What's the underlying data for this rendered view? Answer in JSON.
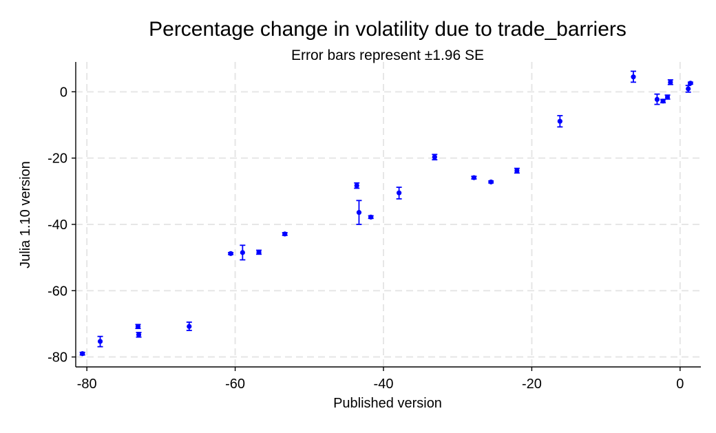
{
  "chart_data": {
    "type": "scatter",
    "title": "Percentage change in volatility due to trade_barriers",
    "subtitle": "Error bars represent ±1.96 SE",
    "xlabel": "Published version",
    "ylabel": "Julia 1.10 version",
    "xlim": [
      -81.5,
      2.8
    ],
    "ylim": [
      -83,
      9
    ],
    "xticks": [
      -80,
      -60,
      -40,
      -20,
      0
    ],
    "yticks": [
      -80,
      -60,
      -40,
      -20,
      0
    ],
    "grid": true,
    "colors": {
      "points": "#0000ff",
      "grid": "#e6e6e6",
      "axis": "#000000"
    },
    "points": [
      {
        "x": -80.6,
        "y": -79.0,
        "lo": -79.4,
        "hi": -78.6
      },
      {
        "x": -78.2,
        "y": -75.3,
        "lo": -76.9,
        "hi": -73.8
      },
      {
        "x": -73.1,
        "y": -70.8,
        "lo": -71.4,
        "hi": -70.2
      },
      {
        "x": -73.0,
        "y": -73.3,
        "lo": -74.0,
        "hi": -72.6
      },
      {
        "x": -66.2,
        "y": -70.8,
        "lo": -72.0,
        "hi": -69.5
      },
      {
        "x": -60.6,
        "y": -48.8,
        "lo": -49.1,
        "hi": -48.5
      },
      {
        "x": -59.0,
        "y": -48.5,
        "lo": -50.7,
        "hi": -46.3
      },
      {
        "x": -56.8,
        "y": -48.4,
        "lo": -49.0,
        "hi": -47.8
      },
      {
        "x": -53.3,
        "y": -42.9,
        "lo": -43.3,
        "hi": -42.5
      },
      {
        "x": -43.6,
        "y": -28.3,
        "lo": -29.1,
        "hi": -27.5
      },
      {
        "x": -43.3,
        "y": -36.4,
        "lo": -40.0,
        "hi": -32.8
      },
      {
        "x": -41.7,
        "y": -37.8,
        "lo": -38.2,
        "hi": -37.4
      },
      {
        "x": -37.9,
        "y": -30.5,
        "lo": -32.3,
        "hi": -28.8
      },
      {
        "x": -33.1,
        "y": -19.7,
        "lo": -20.5,
        "hi": -18.9
      },
      {
        "x": -27.8,
        "y": -25.9,
        "lo": -26.3,
        "hi": -25.5
      },
      {
        "x": -25.5,
        "y": -27.2,
        "lo": -27.5,
        "hi": -26.9
      },
      {
        "x": -22.0,
        "y": -23.8,
        "lo": -24.5,
        "hi": -23.1
      },
      {
        "x": -16.2,
        "y": -8.9,
        "lo": -10.6,
        "hi": -7.2
      },
      {
        "x": -6.3,
        "y": 4.5,
        "lo": 2.9,
        "hi": 6.2
      },
      {
        "x": -3.1,
        "y": -2.3,
        "lo": -3.8,
        "hi": -0.7
      },
      {
        "x": -2.3,
        "y": -2.8,
        "lo": -3.3,
        "hi": -2.3
      },
      {
        "x": -1.7,
        "y": -1.6,
        "lo": -2.2,
        "hi": -1.0
      },
      {
        "x": -1.3,
        "y": 2.9,
        "lo": 2.2,
        "hi": 3.6
      },
      {
        "x": 1.1,
        "y": 0.9,
        "lo": -0.1,
        "hi": 1.9
      },
      {
        "x": 1.4,
        "y": 2.6,
        "lo": 2.3,
        "hi": 2.9
      }
    ]
  }
}
